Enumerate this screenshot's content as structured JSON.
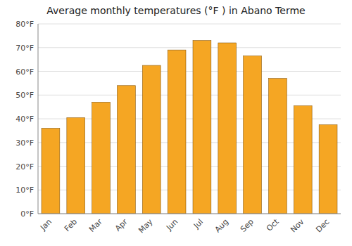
{
  "chart_data": {
    "type": "bar",
    "title": "Average monthly temperatures (°F ) in Abano Terme",
    "categories": [
      "Jan",
      "Feb",
      "Mar",
      "Apr",
      "May",
      "Jun",
      "Jul",
      "Aug",
      "Sep",
      "Oct",
      "Nov",
      "Dec"
    ],
    "values": [
      36,
      40.5,
      47,
      54,
      62.5,
      69,
      73,
      72,
      66.5,
      57,
      45.5,
      37.5
    ],
    "color": "#F5A623",
    "ylim": [
      0,
      80
    ],
    "yticks": [
      {
        "value": 0,
        "label": "0°F"
      },
      {
        "value": 10,
        "label": "10°F"
      },
      {
        "value": 20,
        "label": "20°F"
      },
      {
        "value": 30,
        "label": "30°F"
      },
      {
        "value": 40,
        "label": "40°F"
      },
      {
        "value": 50,
        "label": "50°F"
      },
      {
        "value": 60,
        "label": "60°F"
      },
      {
        "value": 70,
        "label": "70°F"
      },
      {
        "value": 80,
        "label": "80°F"
      }
    ],
    "grid": true
  }
}
